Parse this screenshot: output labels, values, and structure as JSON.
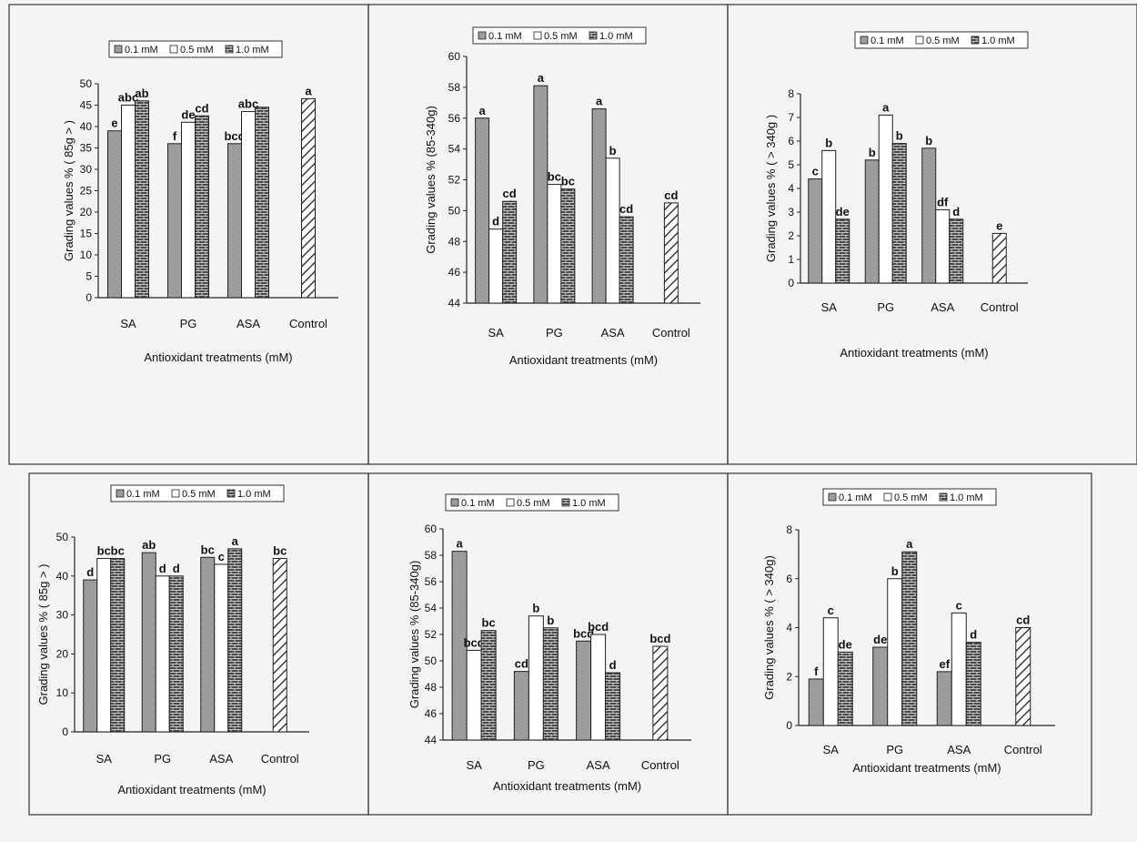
{
  "legend_labels": [
    "0.1 mM",
    "0.5 mM",
    "1.0 mM"
  ],
  "colors": {
    "s1": "#9a9a9a",
    "s2": "#ffffff",
    "s3": "#4a4a4a",
    "control": "#ffffff"
  },
  "chart_data": [
    {
      "type": "bar",
      "categories": [
        "SA",
        "PG",
        "ASA",
        "Control"
      ],
      "series": [
        {
          "name": "0.1 mM",
          "values": [
            39,
            36,
            36,
            null
          ],
          "letters": [
            "e",
            "f",
            "bcd",
            ""
          ]
        },
        {
          "name": "0.5 mM",
          "values": [
            45,
            41,
            43.5,
            null
          ],
          "letters": [
            "abc",
            "de",
            "abc",
            ""
          ]
        },
        {
          "name": "1.0 mM",
          "values": [
            46,
            42.5,
            44.5,
            null
          ],
          "letters": [
            "ab",
            "cd",
            "",
            ""
          ]
        }
      ],
      "control": {
        "value": 46.5,
        "letter": "a"
      },
      "ylim": [
        0,
        50
      ],
      "yticks": [
        0,
        5,
        10,
        15,
        20,
        25,
        30,
        35,
        40,
        45,
        50
      ],
      "ylabel": "Grading values % ( 85g > )",
      "xlabel": "Antioxidant treatments (mM)"
    },
    {
      "type": "bar",
      "categories": [
        "SA",
        "PG",
        "ASA",
        "Control"
      ],
      "series": [
        {
          "name": "0.1 mM",
          "values": [
            56,
            58.1,
            56.6,
            null
          ],
          "letters": [
            "a",
            "a",
            "a",
            ""
          ]
        },
        {
          "name": "0.5 mM",
          "values": [
            48.8,
            51.7,
            53.4,
            null
          ],
          "letters": [
            "d",
            "bc",
            "b",
            ""
          ]
        },
        {
          "name": "1.0 mM",
          "values": [
            50.6,
            51.4,
            49.6,
            null
          ],
          "letters": [
            "cd",
            "bc",
            "cd",
            ""
          ]
        }
      ],
      "control": {
        "value": 50.5,
        "letter": "cd"
      },
      "ylim": [
        44,
        60
      ],
      "yticks": [
        44,
        46,
        48,
        50,
        52,
        54,
        56,
        58,
        60
      ],
      "ylabel": "Grading values % (85-340g)",
      "xlabel": "Antioxidant treatments (mM)"
    },
    {
      "type": "bar",
      "categories": [
        "SA",
        "PG",
        "ASA",
        "Control"
      ],
      "series": [
        {
          "name": "0.1 mM",
          "values": [
            4.4,
            5.2,
            5.7,
            null
          ],
          "letters": [
            "c",
            "b",
            "b",
            ""
          ]
        },
        {
          "name": "0.5 mM",
          "values": [
            5.6,
            7.1,
            3.1,
            null
          ],
          "letters": [
            "b",
            "a",
            "df",
            ""
          ]
        },
        {
          "name": "1.0 mM",
          "values": [
            2.7,
            5.9,
            2.7,
            null
          ],
          "letters": [
            "de",
            "b",
            "d",
            ""
          ]
        }
      ],
      "control": {
        "value": 2.1,
        "letter": "e"
      },
      "ylim": [
        0,
        8
      ],
      "yticks": [
        0,
        1,
        2,
        3,
        4,
        5,
        6,
        7,
        8
      ],
      "ylabel": "Grading values % ( > 340g )",
      "xlabel": "Antioxidant treatments (mM)"
    },
    {
      "type": "bar",
      "categories": [
        "SA",
        "PG",
        "ASA",
        "Control"
      ],
      "series": [
        {
          "name": "0.1 mM",
          "values": [
            39,
            46,
            44.8,
            null
          ],
          "letters": [
            "d",
            "ab",
            "bc",
            ""
          ]
        },
        {
          "name": "0.5 mM",
          "values": [
            44.5,
            40,
            43,
            null
          ],
          "letters": [
            "bc",
            "d",
            "c",
            ""
          ]
        },
        {
          "name": "1.0 mM",
          "values": [
            44.5,
            40,
            47,
            null
          ],
          "letters": [
            "bc",
            "d",
            "a",
            ""
          ]
        }
      ],
      "control": {
        "value": 44.5,
        "letter": "bc"
      },
      "ylim": [
        0,
        50
      ],
      "yticks": [
        0,
        10,
        20,
        30,
        40,
        50
      ],
      "ylabel": "Grading values % ( 85g > )",
      "xlabel": "Antioxidant treatments (mM)"
    },
    {
      "type": "bar",
      "categories": [
        "SA",
        "PG",
        "ASA",
        "Control"
      ],
      "series": [
        {
          "name": "0.1 mM",
          "values": [
            58.3,
            49.2,
            51.5,
            null
          ],
          "letters": [
            "a",
            "cd",
            "bcd",
            ""
          ]
        },
        {
          "name": "0.5 mM",
          "values": [
            50.8,
            53.4,
            52,
            null
          ],
          "letters": [
            "bcd",
            "b",
            "bcd",
            ""
          ]
        },
        {
          "name": "1.0 mM",
          "values": [
            52.3,
            52.5,
            49.1,
            null
          ],
          "letters": [
            "bc",
            "b",
            "d",
            ""
          ]
        }
      ],
      "control": {
        "value": 51.1,
        "letter": "bcd"
      },
      "ylim": [
        44,
        60
      ],
      "yticks": [
        44,
        46,
        48,
        50,
        52,
        54,
        56,
        58,
        60
      ],
      "ylabel": "Grading values % (85-340g)",
      "xlabel": "Antioxidant treatments (mM)"
    },
    {
      "type": "bar",
      "categories": [
        "SA",
        "PG",
        "ASA",
        "Control"
      ],
      "series": [
        {
          "name": "0.1 mM",
          "values": [
            1.9,
            3.2,
            2.2,
            null
          ],
          "letters": [
            "f",
            "de",
            "ef",
            ""
          ]
        },
        {
          "name": "0.5 mM",
          "values": [
            4.4,
            6,
            4.6,
            null
          ],
          "letters": [
            "c",
            "b",
            "c",
            ""
          ]
        },
        {
          "name": "1.0 mM",
          "values": [
            3,
            7.1,
            3.4,
            null
          ],
          "letters": [
            "de",
            "a",
            "d",
            ""
          ]
        }
      ],
      "control": {
        "value": 4,
        "letter": "cd"
      },
      "ylim": [
        0,
        8
      ],
      "yticks": [
        0,
        2,
        4,
        6,
        8
      ],
      "ylabel": "Grading values % ( > 340g)",
      "xlabel": "Antioxidant treatments (mM)"
    }
  ]
}
